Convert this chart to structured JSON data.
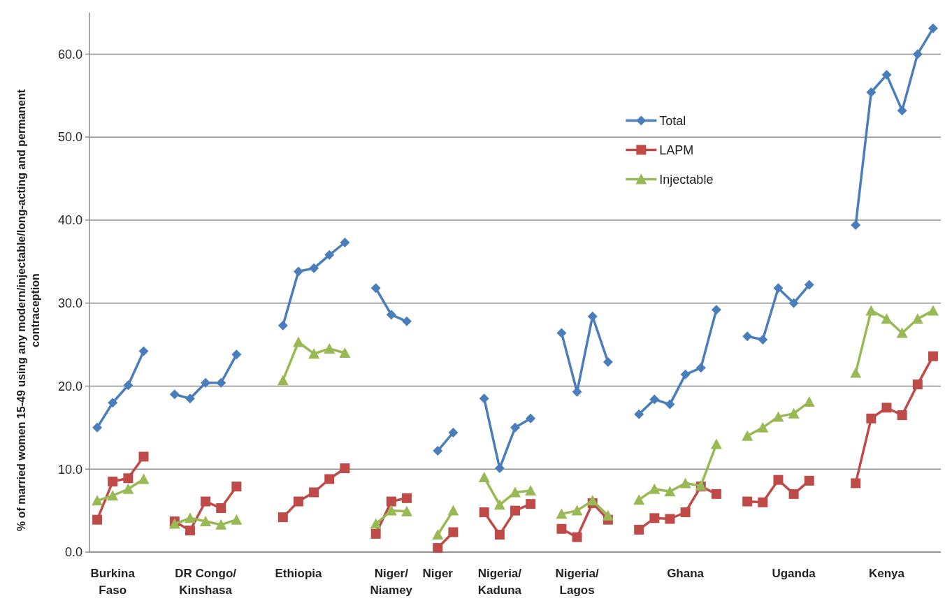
{
  "chart_data": {
    "type": "line",
    "ylabel": "% of married women 15-49 using any modern/injectable/long-acting and permanent contraception",
    "categories": [
      null,
      "Burkina Faso",
      null,
      null,
      null,
      null,
      null,
      "DR Congo/Kinshasa",
      null,
      null,
      null,
      null,
      null,
      "Ethiopia",
      null,
      null,
      null,
      null,
      null,
      "Niger/Niamey",
      null,
      null,
      "Niger",
      null,
      null,
      null,
      "Nigeria/Kaduna",
      null,
      null,
      null,
      null,
      "Nigeria/Lagos",
      null,
      null,
      null,
      null,
      null,
      null,
      "Ghana",
      null,
      null,
      null,
      null,
      null,
      null,
      "Uganda",
      null,
      null,
      null,
      null,
      null,
      "Kenya",
      null,
      null,
      null
    ],
    "ylim": [
      0,
      65
    ],
    "yticks": [
      {
        "value": 0,
        "label": "0.0"
      },
      {
        "value": 10,
        "label": "10.0"
      },
      {
        "value": 20,
        "label": "20.0"
      },
      {
        "value": 30,
        "label": "30.0"
      },
      {
        "value": 40,
        "label": "40.0"
      },
      {
        "value": 50,
        "label": "50.0"
      },
      {
        "value": 60,
        "label": "60.0"
      }
    ],
    "grid": "y",
    "legend": "right",
    "line_style": "solid",
    "series": [
      {
        "name": "Total",
        "color": "#4a7ebb",
        "marker": "diamond",
        "values": [
          15.0,
          18.0,
          20.1,
          24.2,
          null,
          19.0,
          18.5,
          20.4,
          20.4,
          23.8,
          null,
          null,
          27.3,
          33.8,
          34.2,
          35.8,
          37.3,
          null,
          31.8,
          28.6,
          27.8,
          null,
          12.2,
          14.4,
          null,
          18.5,
          10.1,
          15.0,
          16.1,
          null,
          26.4,
          19.3,
          28.4,
          22.9,
          null,
          16.6,
          18.4,
          17.8,
          21.4,
          22.2,
          29.2,
          null,
          26.0,
          25.6,
          31.8,
          30.0,
          32.2,
          null,
          null,
          39.4,
          55.4,
          57.5,
          53.2,
          60.0,
          63.1
        ]
      },
      {
        "name": "LAPM",
        "color": "#be4b48",
        "marker": "square",
        "values": [
          3.9,
          8.5,
          8.9,
          11.5,
          null,
          3.7,
          2.6,
          6.1,
          5.3,
          7.9,
          null,
          null,
          4.2,
          6.1,
          7.2,
          8.8,
          10.1,
          null,
          2.2,
          6.1,
          6.5,
          null,
          0.5,
          2.4,
          null,
          4.8,
          2.1,
          5.0,
          5.8,
          null,
          2.8,
          1.8,
          5.9,
          3.9,
          null,
          2.7,
          4.1,
          4.0,
          4.8,
          7.9,
          7.0,
          null,
          6.1,
          6.0,
          8.7,
          7.0,
          8.6,
          null,
          null,
          8.3,
          16.1,
          17.4,
          16.5,
          20.2,
          23.6
        ]
      },
      {
        "name": "Injectable",
        "color": "#98b954",
        "marker": "triangle",
        "values": [
          6.2,
          6.8,
          7.6,
          8.8,
          null,
          3.4,
          4.1,
          3.7,
          3.3,
          3.9,
          null,
          null,
          20.7,
          25.3,
          23.9,
          24.5,
          24.0,
          null,
          3.4,
          5.0,
          4.9,
          null,
          2.1,
          5.0,
          null,
          9.0,
          5.7,
          7.2,
          7.4,
          null,
          4.6,
          5.0,
          6.2,
          4.4,
          null,
          6.3,
          7.6,
          7.3,
          8.3,
          8.0,
          13.0,
          null,
          14.0,
          15.0,
          16.3,
          16.7,
          18.1,
          null,
          null,
          21.6,
          29.1,
          28.1,
          26.4,
          28.1,
          29.1
        ]
      }
    ]
  }
}
